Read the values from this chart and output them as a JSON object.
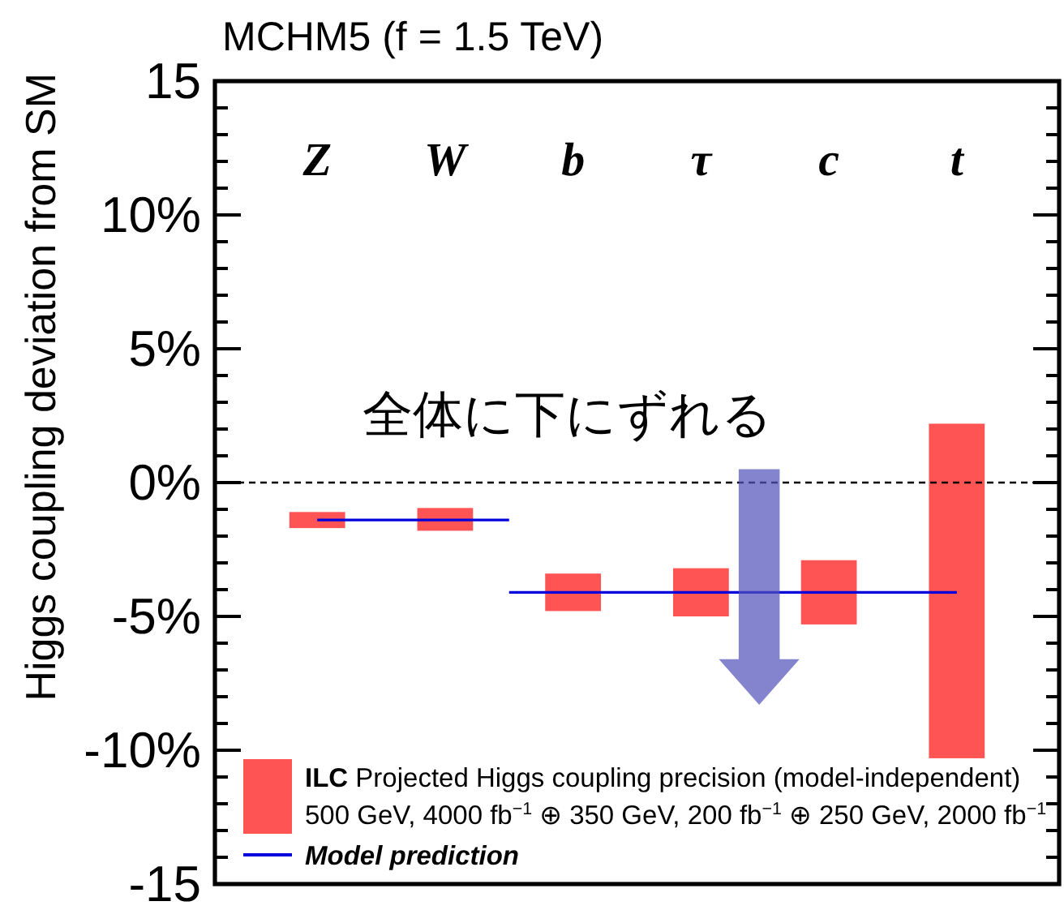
{
  "chart_data": {
    "type": "bar",
    "title": "MCHM5 (f = 1.5 TeV)",
    "ylabel": "Higgs coupling deviation from SM",
    "categories": [
      "Z",
      "W",
      "b",
      "τ",
      "c",
      "t"
    ],
    "series": [
      {
        "name": "ILC Projected Higgs coupling precision (model-independent)\n500 GeV, 4000 fb$^{−1}$ ⊕ 350 GeV, 200 fb$^{−1}$ ⊕ 250 GeV, 2000 fb$^{−1}$",
        "color": "#ff5454",
        "base": [
          -1.7,
          -1.8,
          -4.8,
          -5.0,
          -5.3,
          -10.3
        ],
        "values": [
          0.6,
          0.85,
          1.4,
          1.8,
          2.4,
          12.5
        ]
      },
      {
        "name": "Model prediction",
        "type": "step",
        "color": "#0000dd",
        "values": [
          -1.4,
          -1.4,
          -4.1,
          -4.1,
          -4.1,
          -4.1
        ]
      }
    ],
    "ylim": [
      -15,
      15
    ],
    "yticks": [
      15,
      {
        "value": 14,
        "label": null
      },
      {
        "value": 13,
        "label": null
      },
      {
        "value": 12,
        "label": null
      },
      {
        "value": 11,
        "label": null
      },
      {
        "value": 10,
        "label": "10%"
      },
      {
        "value": 9,
        "label": null
      },
      {
        "value": 8,
        "label": null
      },
      {
        "value": 7,
        "label": null
      },
      {
        "value": 6,
        "label": null
      },
      {
        "value": 5,
        "label": "5%"
      },
      {
        "value": 4,
        "label": null
      },
      {
        "value": 3,
        "label": null
      },
      {
        "value": 2,
        "label": null
      },
      {
        "value": 1,
        "label": null
      },
      {
        "value": 0,
        "label": "0%"
      },
      {
        "value": -1,
        "label": null
      },
      {
        "value": -2,
        "label": null
      },
      {
        "value": -3,
        "label": null
      },
      {
        "value": -4,
        "label": null
      },
      {
        "value": -5,
        "label": "-5%"
      },
      {
        "value": -6,
        "label": null
      },
      {
        "value": -7,
        "label": null
      },
      {
        "value": -8,
        "label": null
      },
      {
        "value": -9,
        "label": null
      },
      {
        "value": -10,
        "label": "-10%"
      },
      {
        "value": -11,
        "label": null
      },
      {
        "value": -12,
        "label": null
      },
      {
        "value": -13,
        "label": null
      },
      {
        "value": -14,
        "label": null
      },
      -15
    ],
    "ref_lines": [
      {
        "axis": "y",
        "value": 0,
        "color": "#000000",
        "line_style": "dashed"
      }
    ],
    "annotations": [
      "全体に下にずれる"
    ],
    "legend": "bottom left"
  }
}
